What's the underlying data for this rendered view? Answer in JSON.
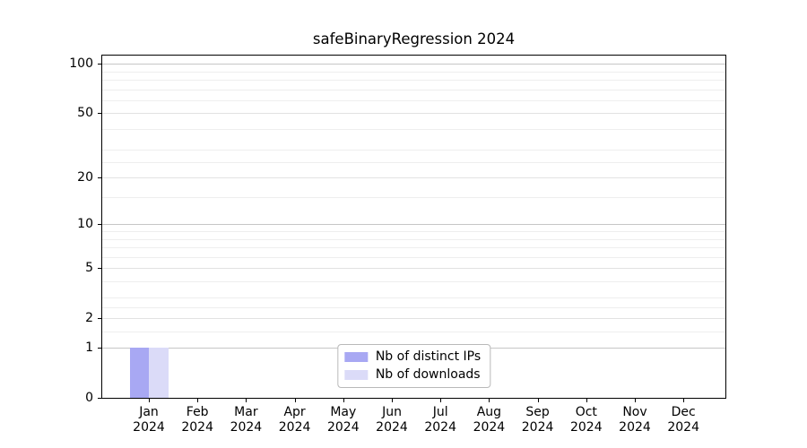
{
  "chart_data": {
    "type": "bar",
    "title": "safeBinaryRegression 2024",
    "categories": [
      "Jan 2024",
      "Feb 2024",
      "Mar 2024",
      "Apr 2024",
      "May 2024",
      "Jun 2024",
      "Jul 2024",
      "Aug 2024",
      "Sep 2024",
      "Oct 2024",
      "Nov 2024",
      "Dec 2024"
    ],
    "series": [
      {
        "name": "Nb of distinct IPs",
        "color": "#a8a8f3",
        "values": [
          1,
          0,
          0,
          0,
          0,
          0,
          0,
          0,
          0,
          0,
          0,
          0
        ]
      },
      {
        "name": "Nb of downloads",
        "color": "#dbdbf8",
        "values": [
          1,
          0,
          0,
          0,
          0,
          0,
          0,
          0,
          0,
          0,
          0,
          0
        ]
      }
    ],
    "xlabel": "",
    "ylabel": "",
    "y_scale": "log1p",
    "ylim": [
      0,
      112
    ],
    "y_ticks": [
      100,
      50,
      20,
      10,
      5,
      2,
      1,
      0
    ],
    "y_gridlines": {
      "major": [
        1,
        10,
        100
      ],
      "mid": [
        2,
        5,
        20,
        50
      ],
      "minor": [
        1.5,
        2.5,
        3,
        4,
        6,
        7,
        8,
        9,
        15,
        25,
        30,
        40,
        60,
        70,
        80,
        90
      ]
    },
    "grid": true,
    "legend": {
      "position": "lower center"
    }
  }
}
